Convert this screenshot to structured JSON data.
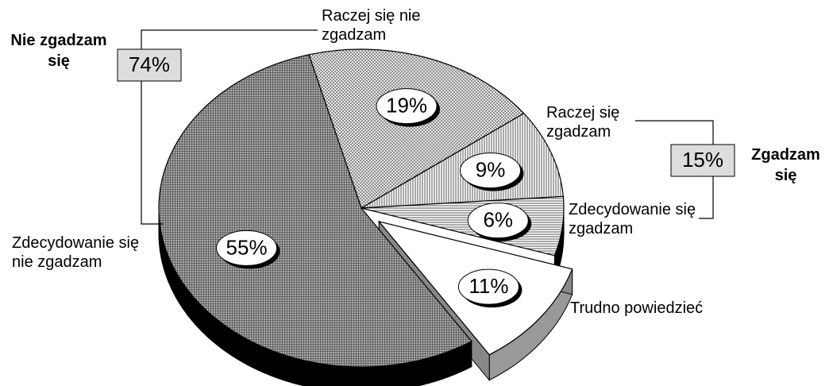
{
  "chart_data": {
    "type": "pie3d",
    "categories": [
      "Raczej się nie zgadzam",
      "Raczej się zgadzam",
      "Zdecydowanie się zgadzam",
      "Trudno powiedzieć",
      "Zdecydowanie się nie zgadzam"
    ],
    "values": [
      19,
      9,
      6,
      11,
      55
    ],
    "value_labels": [
      "19%",
      "9%",
      "6%",
      "11%",
      "55%"
    ],
    "groups": [
      {
        "name": "Nie zgadzam się",
        "value": 74,
        "value_label": "74%"
      },
      {
        "name": "Zgadzam się",
        "value": 15,
        "value_label": "15%"
      }
    ]
  }
}
